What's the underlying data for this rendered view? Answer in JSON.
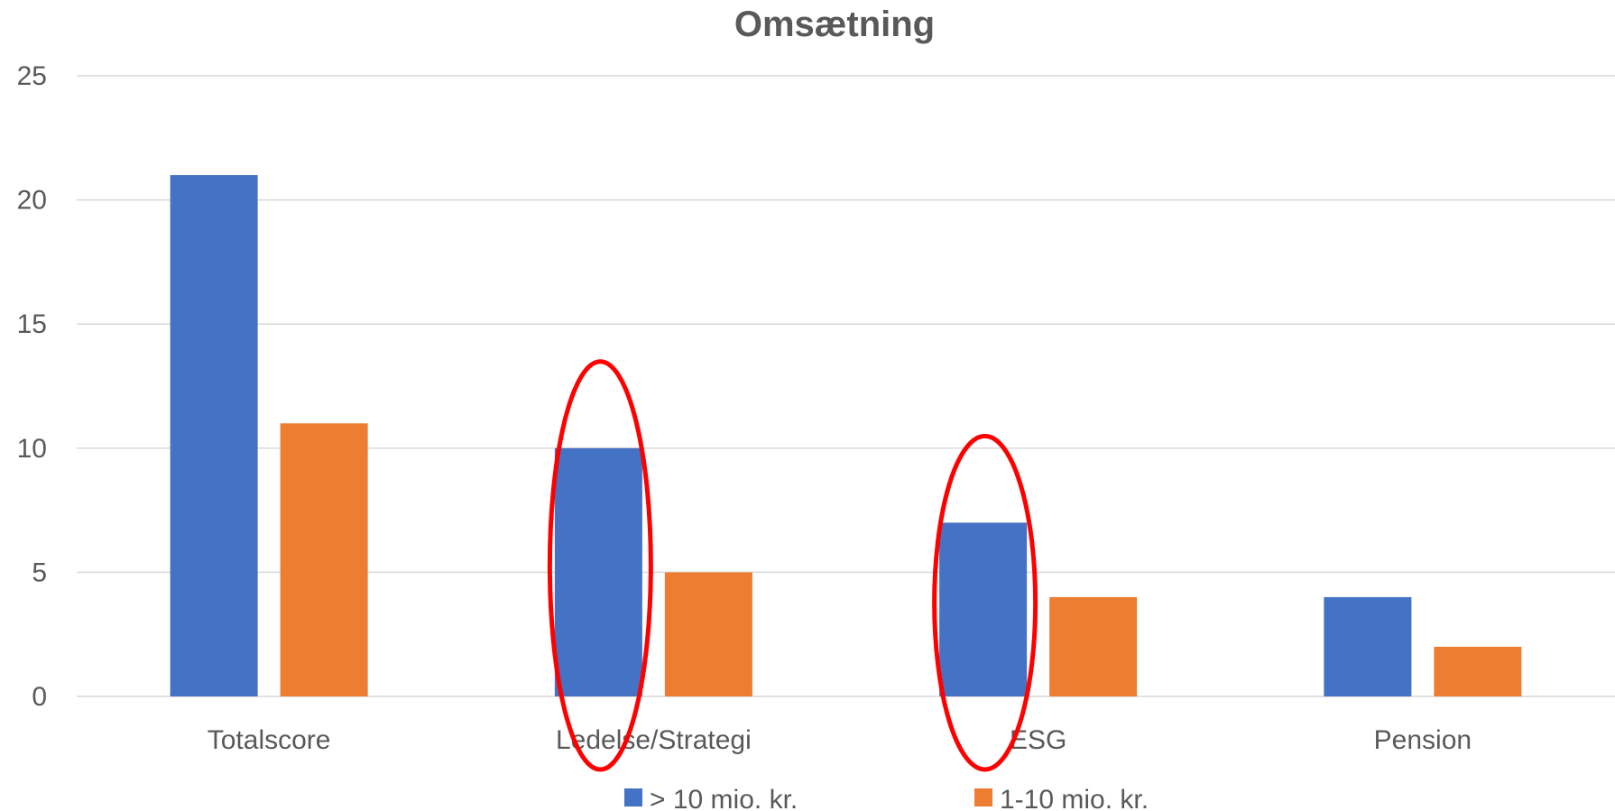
{
  "chart_data": {
    "type": "bar",
    "title": "Omsætning",
    "xlabel": "",
    "ylabel": "",
    "ylim": [
      0,
      25
    ],
    "yticks": [
      0,
      5,
      10,
      15,
      20,
      25
    ],
    "grid": true,
    "legend_position": "bottom",
    "categories": [
      "Totalscore",
      "Ledelse/Strategi",
      "ESG",
      "Pension"
    ],
    "series": [
      {
        "name": "> 10 mio. kr.",
        "color": "#4472c4",
        "values": [
          21,
          10,
          7,
          4
        ]
      },
      {
        "name": "1-10 mio. kr.",
        "color": "#ed7d31",
        "values": [
          11,
          5,
          4,
          2
        ]
      }
    ],
    "annotations": [
      {
        "type": "ellipse",
        "category": "Ledelse/Strategi",
        "series": "> 10 mio. kr.",
        "color": "#ff0000"
      },
      {
        "type": "ellipse",
        "category": "ESG",
        "series": "> 10 mio. kr.",
        "color": "#ff0000"
      }
    ]
  }
}
